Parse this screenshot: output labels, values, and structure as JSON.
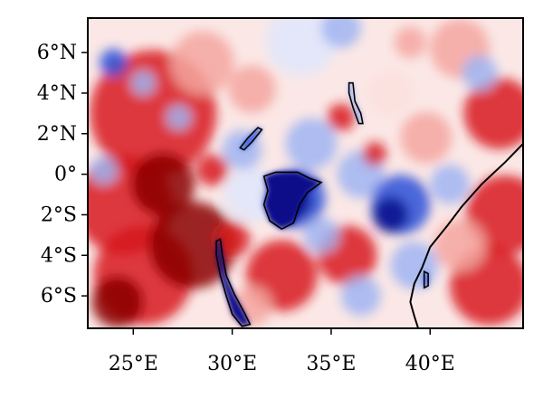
{
  "map": {
    "extent": {
      "lon_min": 22.7,
      "lon_max": 44.7,
      "lat_min": -7.6,
      "lat_max": 7.7
    },
    "y_ticks": [
      {
        "lat": 6,
        "label": "6°N"
      },
      {
        "lat": 4,
        "label": "4°N"
      },
      {
        "lat": 2,
        "label": "2°N"
      },
      {
        "lat": 0,
        "label": "0°"
      },
      {
        "lat": -2,
        "label": "2°S"
      },
      {
        "lat": -4,
        "label": "4°S"
      },
      {
        "lat": -6,
        "label": "6°S"
      }
    ],
    "x_ticks": [
      {
        "lon": 25,
        "label": "25°E"
      },
      {
        "lon": 30,
        "label": "30°E"
      },
      {
        "lon": 35,
        "label": "35°E"
      },
      {
        "lon": 40,
        "label": "40°E"
      }
    ],
    "colors": {
      "dark_red": "#8b0000",
      "red": "#d7191c",
      "light_red": "#f4a6a0",
      "pale_red": "#fbe0dd",
      "pale_blue": "#dfe6fb",
      "light_blue": "#9fb4f2",
      "blue": "#2b4fd8",
      "dark_blue": "#0a0a8a",
      "coastline": "#000000"
    },
    "blobs": [
      {
        "lon": 26.0,
        "lat": 3.0,
        "r": 3.2,
        "c": "red"
      },
      {
        "lon": 24.5,
        "lat": -1.5,
        "r": 2.5,
        "c": "red"
      },
      {
        "lon": 25.5,
        "lat": -5.0,
        "r": 2.5,
        "c": "red"
      },
      {
        "lon": 28.0,
        "lat": -3.5,
        "r": 2.2,
        "c": "dark_red"
      },
      {
        "lon": 26.5,
        "lat": -0.5,
        "r": 1.6,
        "c": "dark_red"
      },
      {
        "lon": 24.2,
        "lat": -6.3,
        "r": 1.3,
        "c": "dark_red"
      },
      {
        "lon": 28.5,
        "lat": 5.5,
        "r": 1.6,
        "c": "light_red"
      },
      {
        "lon": 33.5,
        "lat": 6.6,
        "r": 1.8,
        "c": "pale_blue"
      },
      {
        "lon": 35.5,
        "lat": 7.2,
        "r": 1.0,
        "c": "light_blue"
      },
      {
        "lon": 31.0,
        "lat": 4.2,
        "r": 1.2,
        "c": "light_red"
      },
      {
        "lon": 41.5,
        "lat": 6.2,
        "r": 1.5,
        "c": "light_red"
      },
      {
        "lon": 43.5,
        "lat": 3.0,
        "r": 1.8,
        "c": "red"
      },
      {
        "lon": 43.8,
        "lat": -2.0,
        "r": 2.0,
        "c": "red"
      },
      {
        "lon": 43.0,
        "lat": -5.5,
        "r": 2.0,
        "c": "red"
      },
      {
        "lon": 41.5,
        "lat": -3.5,
        "r": 1.3,
        "c": "light_red"
      },
      {
        "lon": 39.8,
        "lat": 1.8,
        "r": 1.3,
        "c": "light_red"
      },
      {
        "lon": 38.0,
        "lat": 4.0,
        "r": 1.2,
        "c": "pale_red"
      },
      {
        "lon": 32.5,
        "lat": -5.0,
        "r": 1.8,
        "c": "red"
      },
      {
        "lon": 35.8,
        "lat": -4.0,
        "r": 1.5,
        "c": "red"
      },
      {
        "lon": 31.0,
        "lat": -1.0,
        "r": 1.4,
        "c": "pale_blue"
      },
      {
        "lon": 30.5,
        "lat": 1.2,
        "r": 1.0,
        "c": "light_blue"
      },
      {
        "lon": 34.0,
        "lat": 1.5,
        "r": 1.3,
        "c": "light_blue"
      },
      {
        "lon": 36.5,
        "lat": 0.0,
        "r": 1.2,
        "c": "light_blue"
      },
      {
        "lon": 38.5,
        "lat": -1.5,
        "r": 1.5,
        "c": "blue"
      },
      {
        "lon": 38.0,
        "lat": -2.0,
        "r": 0.9,
        "c": "dark_blue"
      },
      {
        "lon": 39.2,
        "lat": -4.5,
        "r": 1.2,
        "c": "light_blue"
      },
      {
        "lon": 41.0,
        "lat": -0.5,
        "r": 1.0,
        "c": "light_blue"
      },
      {
        "lon": 33.2,
        "lat": -1.2,
        "r": 1.5,
        "c": "blue"
      },
      {
        "lon": 33.0,
        "lat": -1.3,
        "r": 1.0,
        "c": "dark_blue"
      },
      {
        "lon": 34.5,
        "lat": -3.0,
        "r": 0.9,
        "c": "light_blue"
      },
      {
        "lon": 36.5,
        "lat": -6.0,
        "r": 1.0,
        "c": "light_blue"
      },
      {
        "lon": 24.0,
        "lat": 5.5,
        "r": 0.7,
        "c": "blue"
      },
      {
        "lon": 23.5,
        "lat": 0.2,
        "r": 0.7,
        "c": "light_blue"
      },
      {
        "lon": 25.5,
        "lat": 4.5,
        "r": 0.6,
        "c": "light_blue"
      },
      {
        "lon": 27.3,
        "lat": 2.8,
        "r": 0.6,
        "c": "light_blue"
      },
      {
        "lon": 29.0,
        "lat": 0.2,
        "r": 0.8,
        "c": "red"
      },
      {
        "lon": 30.0,
        "lat": -3.2,
        "r": 0.9,
        "c": "red"
      },
      {
        "lon": 31.0,
        "lat": -6.5,
        "r": 1.0,
        "c": "light_red"
      },
      {
        "lon": 35.5,
        "lat": 2.8,
        "r": 0.7,
        "c": "red"
      },
      {
        "lon": 37.2,
        "lat": 1.0,
        "r": 0.6,
        "c": "red"
      },
      {
        "lon": 42.5,
        "lat": 5.0,
        "r": 0.9,
        "c": "light_blue"
      },
      {
        "lon": 39.0,
        "lat": 6.5,
        "r": 0.8,
        "c": "light_red"
      }
    ],
    "features": [
      {
        "name": "lake-victoria",
        "fill": "dark_blue",
        "points": [
          [
            31.6,
            -0.1
          ],
          [
            32.2,
            0.1
          ],
          [
            33.3,
            0.1
          ],
          [
            33.9,
            -0.2
          ],
          [
            34.5,
            -0.4
          ],
          [
            33.8,
            -0.9
          ],
          [
            33.4,
            -1.5
          ],
          [
            33.1,
            -2.4
          ],
          [
            32.5,
            -2.7
          ],
          [
            31.9,
            -2.3
          ],
          [
            31.6,
            -1.5
          ],
          [
            31.8,
            -0.8
          ]
        ]
      },
      {
        "name": "lake-tanganyika",
        "fill": "dark_blue",
        "points": [
          [
            29.2,
            -3.3
          ],
          [
            29.4,
            -3.2
          ],
          [
            29.5,
            -4.0
          ],
          [
            29.7,
            -5.0
          ],
          [
            30.1,
            -5.9
          ],
          [
            30.6,
            -6.8
          ],
          [
            30.9,
            -7.4
          ],
          [
            30.5,
            -7.5
          ],
          [
            30.0,
            -6.9
          ],
          [
            29.7,
            -6.0
          ],
          [
            29.4,
            -5.0
          ],
          [
            29.2,
            -4.0
          ]
        ]
      },
      {
        "name": "lake-albert",
        "fill": "blue",
        "points": [
          [
            30.6,
            1.2
          ],
          [
            31.0,
            1.6
          ],
          [
            31.5,
            2.2
          ],
          [
            31.3,
            2.3
          ],
          [
            30.8,
            1.8
          ],
          [
            30.4,
            1.3
          ]
        ]
      },
      {
        "name": "lake-turkana",
        "fill": "light_blue",
        "points": [
          [
            35.9,
            4.5
          ],
          [
            36.1,
            4.5
          ],
          [
            36.2,
            3.6
          ],
          [
            36.5,
            3.0
          ],
          [
            36.6,
            2.5
          ],
          [
            36.4,
            2.5
          ],
          [
            36.1,
            3.3
          ],
          [
            35.9,
            4.0
          ]
        ]
      },
      {
        "name": "lake-malawi-fragment",
        "fill": "blue",
        "points": [
          [
            39.7,
            -4.8
          ],
          [
            39.9,
            -4.9
          ],
          [
            39.9,
            -5.5
          ],
          [
            39.7,
            -5.6
          ]
        ]
      }
    ],
    "coastline": [
      [
        44.7,
        1.5
      ],
      [
        43.8,
        0.6
      ],
      [
        42.6,
        -0.5
      ],
      [
        41.6,
        -1.6
      ],
      [
        40.9,
        -2.5
      ],
      [
        40.0,
        -3.6
      ],
      [
        39.6,
        -4.6
      ],
      [
        39.2,
        -5.4
      ],
      [
        39.0,
        -6.3
      ],
      [
        39.2,
        -7.0
      ],
      [
        39.4,
        -7.6
      ]
    ]
  }
}
